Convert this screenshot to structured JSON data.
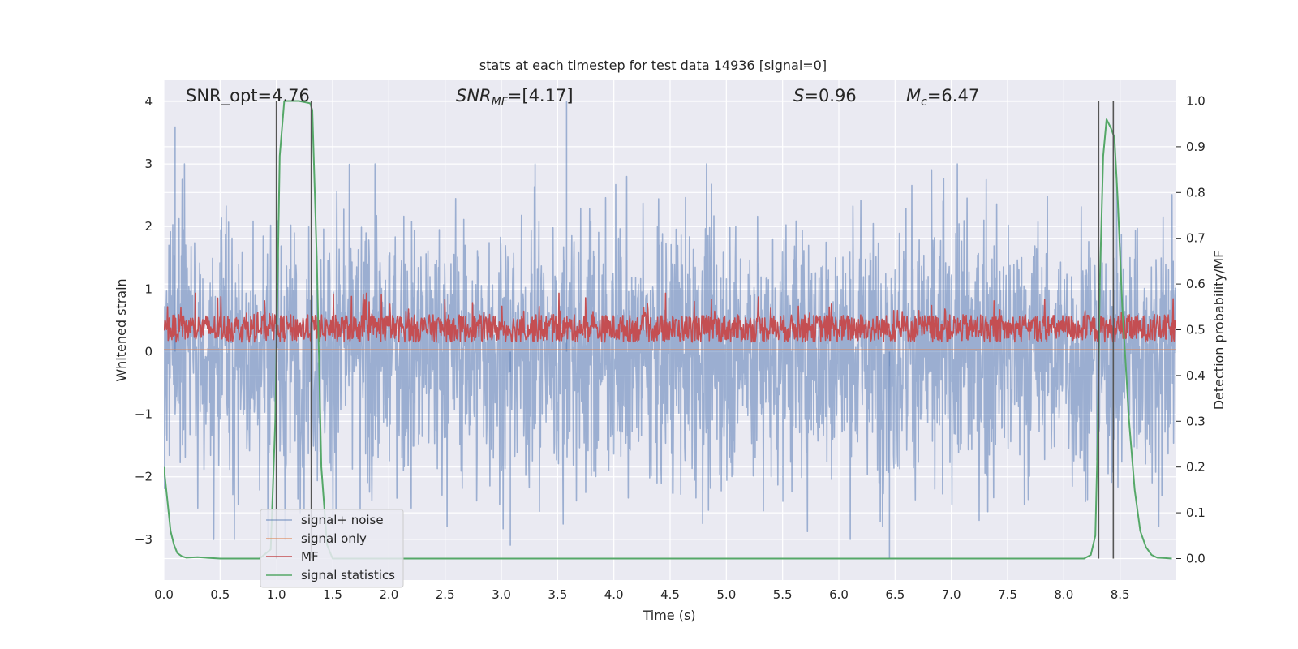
{
  "chart_data": {
    "type": "line",
    "title": "stats at each timestep for test data 14936 [signal=0]",
    "xlabel": "Time (s)",
    "ylabel": "Whitened strain",
    "ylabel_right": "Detection probability/MF",
    "xlim": [
      0.0,
      9.0
    ],
    "ylim": [
      -3.65,
      4.35
    ],
    "ylim_right": [
      -0.047,
      1.047
    ],
    "x_ticks": [
      "0.0",
      "0.5",
      "1.0",
      "1.5",
      "2.0",
      "2.5",
      "3.0",
      "3.5",
      "4.0",
      "4.5",
      "5.0",
      "5.5",
      "6.0",
      "6.5",
      "7.0",
      "7.5",
      "8.0",
      "8.5"
    ],
    "y_ticks": [
      "−3",
      "−2",
      "−1",
      "0",
      "1",
      "2",
      "3",
      "4"
    ],
    "y_right_ticks": [
      "0.0",
      "0.1",
      "0.2",
      "0.3",
      "0.4",
      "0.5",
      "0.6",
      "0.7",
      "0.8",
      "0.9",
      "1.0"
    ],
    "annotations": {
      "snr_opt": "SNR_opt=4.76",
      "snr_mf_main": "SNR",
      "snr_mf_sub": "MF",
      "snr_mf_rest": "=[4.17]",
      "s_sym": "S",
      "s_rest": "=0.96",
      "mc_sym": "M",
      "mc_sub": "c",
      "mc_rest": "=6.47"
    },
    "vertical_markers_s": [
      1.0,
      1.31,
      8.31,
      8.44
    ],
    "legend": {
      "position": "lower-left",
      "entries": [
        "signal+ noise",
        "signal only",
        "MF",
        "signal statistics"
      ]
    },
    "series": [
      {
        "name": "signal+ noise",
        "color": "#4c72b0",
        "axis": "left",
        "generator": "noise",
        "amplitude_std": 1.05,
        "peak_values": [
          3.6,
          4.0,
          -3.3,
          -3.1
        ]
      },
      {
        "name": "signal only",
        "color": "#dd8452",
        "axis": "left",
        "x": [
          0.0,
          9.0
        ],
        "y": [
          0.03,
          0.03
        ]
      },
      {
        "name": "MF",
        "color": "#c44e52",
        "axis": "right",
        "generator": "noise",
        "baseline": 0.5,
        "range": [
          0.45,
          0.58
        ]
      },
      {
        "name": "signal statistics",
        "color": "#55a868",
        "axis": "right",
        "x": [
          0.0,
          0.03,
          0.06,
          0.09,
          0.12,
          0.16,
          0.2,
          0.3,
          0.5,
          0.85,
          0.95,
          0.99,
          1.03,
          1.07,
          1.2,
          1.3,
          1.32,
          1.36,
          1.4,
          1.45,
          1.5,
          2.0,
          8.0,
          8.18,
          8.24,
          8.28,
          8.3,
          8.32,
          8.35,
          8.38,
          8.42,
          8.45,
          8.48,
          8.52,
          8.58,
          8.63,
          8.68,
          8.73,
          8.78,
          8.83,
          8.9,
          8.96
        ],
        "y": [
          0.2,
          0.13,
          0.06,
          0.03,
          0.012,
          0.005,
          0.002,
          0.003,
          0.0,
          0.0,
          0.02,
          0.3,
          0.88,
          1.0,
          1.0,
          0.995,
          0.98,
          0.65,
          0.2,
          0.03,
          0.0,
          0.0,
          0.0,
          0.0,
          0.008,
          0.05,
          0.25,
          0.6,
          0.88,
          0.96,
          0.94,
          0.92,
          0.78,
          0.55,
          0.3,
          0.15,
          0.06,
          0.025,
          0.008,
          0.002,
          0.001,
          0.0
        ]
      }
    ]
  }
}
